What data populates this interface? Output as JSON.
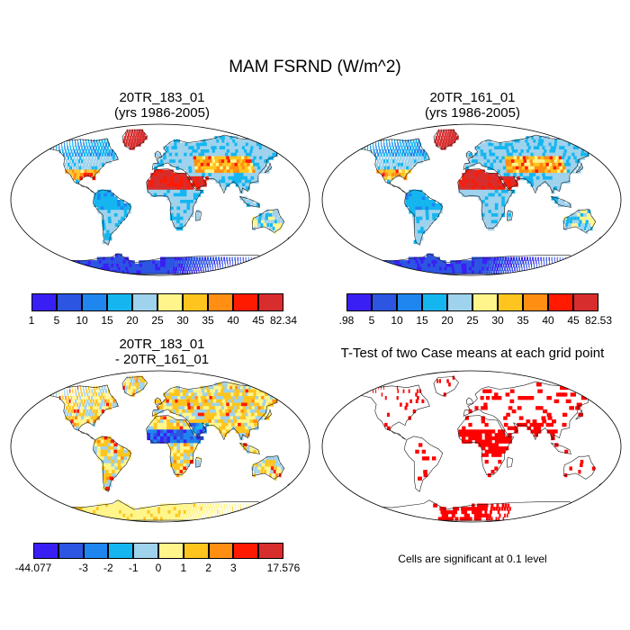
{
  "main_title": "MAM FSRND (W/m^2)",
  "panels": [
    {
      "id": "case1",
      "title_line1": "20TR_183_01",
      "title_line2": "(yrs 1986-2005)"
    },
    {
      "id": "case2",
      "title_line1": "20TR_161_01",
      "title_line2": "(yrs 1986-2005)"
    },
    {
      "id": "diff",
      "title_line1": "20TR_183_01",
      "title_line2": "- 20TR_161_01"
    },
    {
      "id": "ttest",
      "title_line1": "T-Test of two Case means at each grid point",
      "title_line2": ""
    }
  ],
  "colorbars": {
    "case1": {
      "colors": [
        "#3a1ff5",
        "#2c55e2",
        "#1e86ee",
        "#15b6f0",
        "#9fd2ec",
        "#fff58a",
        "#ffc51e",
        "#ff8e12",
        "#ff1a00",
        "#d72d2d"
      ],
      "labels": [
        "1",
        "5",
        "10",
        "15",
        "20",
        "25",
        "30",
        "35",
        "40",
        "45",
        "82.34"
      ]
    },
    "case2": {
      "colors": [
        "#3a1ff5",
        "#2c55e2",
        "#1e86ee",
        "#15b6f0",
        "#9fd2ec",
        "#fff58a",
        "#ffc51e",
        "#ff8e12",
        "#ff1a00",
        "#d72d2d"
      ],
      "labels": [
        ".98",
        "5",
        "10",
        "15",
        "20",
        "25",
        "30",
        "35",
        "40",
        "45",
        "82.53"
      ]
    },
    "diff": {
      "colors": [
        "#3a1ff5",
        "#2c55e2",
        "#1e86ee",
        "#15b6f0",
        "#9fd2ec",
        "#fff58a",
        "#ffc51e",
        "#ff8e12",
        "#ff1a00",
        "#d72d2d"
      ],
      "labels": [
        "-44.077",
        "",
        "-3",
        "-2",
        "-1",
        "0",
        "1",
        "2",
        "3",
        "",
        "17.576"
      ]
    }
  },
  "significance_note": "Cells are significant at 0.1 level",
  "colors": {
    "land_outline": "#1a1a1a",
    "significant": "#ff0000",
    "ocean": "#ffffff"
  }
}
